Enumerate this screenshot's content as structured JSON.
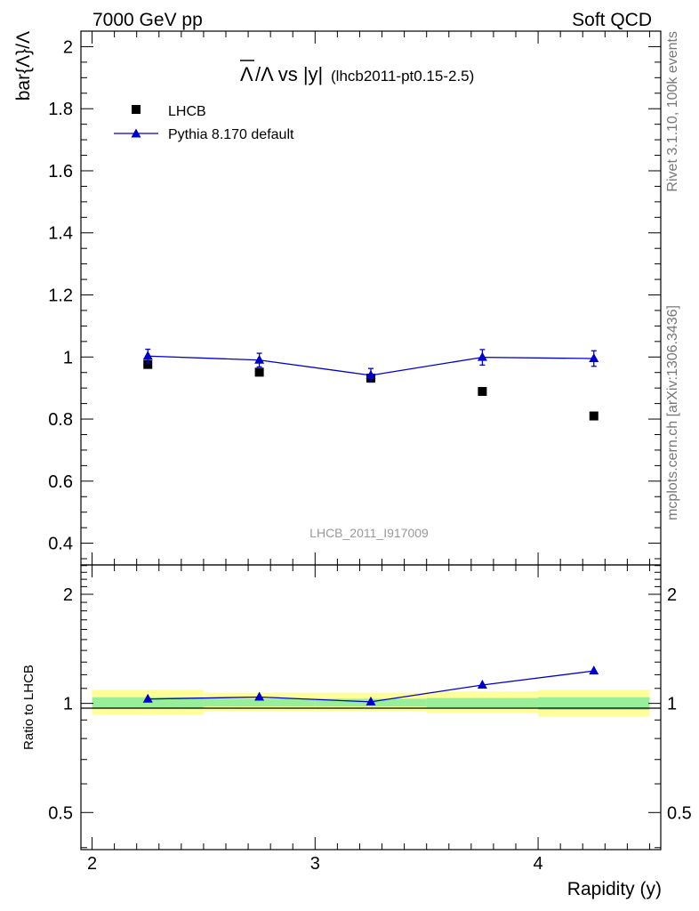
{
  "header": {
    "left": "7000 GeV pp",
    "right": "Soft QCD"
  },
  "side_text": {
    "rivet": "Rivet 3.1.10,  100k events",
    "mcplots": "mcplots.cern.ch [arXiv:1306.3436]"
  },
  "watermark": "LHCB_2011_I917009",
  "colors": {
    "mc": "#0000cc",
    "band_outer": "#ffff99",
    "band_inner": "#99ee99",
    "data": "#000000"
  },
  "chart_data": [
    {
      "type": "scatter",
      "panel": "main",
      "title": "Λ̄/Λ vs |y|",
      "title_parts": {
        "lambdabar": "Λ",
        "rest": "/Λ vs |y|",
        "tag": "(lhcb2011-pt0.15-2.5)"
      },
      "ylabel": "bar{Λ}/Λ",
      "xlim": [
        1.95,
        4.55
      ],
      "ylim": [
        0.33,
        2.05
      ],
      "yticks": [
        0.4,
        0.6,
        0.8,
        1,
        1.2,
        1.4,
        1.6,
        1.8,
        2
      ],
      "ytick_labels": [
        "0.4",
        "0.6",
        "0.8",
        "1",
        "1.2",
        "1.4",
        "1.6",
        "1.8",
        "2"
      ],
      "legend": "top-left",
      "series": [
        {
          "name": "LHCB",
          "marker": "square",
          "x": [
            2.25,
            2.75,
            3.25,
            3.75,
            4.25
          ],
          "xerr": [
            0.25,
            0.25,
            0.25,
            0.25,
            0.25
          ],
          "y": [
            0.976,
            0.951,
            0.932,
            0.889,
            0.81
          ]
        },
        {
          "name": "Pythia 8.170 default",
          "marker": "triangle",
          "line": true,
          "x": [
            2.25,
            2.75,
            3.25,
            3.75,
            4.25
          ],
          "y": [
            1.003,
            0.99,
            0.941,
            0.999,
            0.995
          ],
          "yerr": [
            0.022,
            0.022,
            0.022,
            0.025,
            0.025
          ]
        }
      ]
    },
    {
      "type": "line",
      "panel": "ratio",
      "ylabel": "Ratio to LHCB",
      "xlabel": "Rapidity (y)",
      "xlim": [
        1.95,
        4.55
      ],
      "xticks": [
        2,
        3,
        4
      ],
      "xtick_labels": [
        "2",
        "3",
        "4"
      ],
      "ylim": [
        0.395,
        2.41
      ],
      "log_y": true,
      "yticks": [
        0.5,
        1,
        2
      ],
      "ytick_labels": [
        "0.5",
        "1",
        "2"
      ],
      "bands": {
        "x_edges": [
          2.0,
          2.5,
          3.0,
          3.5,
          4.0,
          4.5
        ],
        "outer": [
          [
            0.93,
            1.09
          ],
          [
            0.95,
            1.07
          ],
          [
            0.95,
            1.07
          ],
          [
            0.94,
            1.08
          ],
          [
            0.92,
            1.09
          ]
        ],
        "inner": [
          [
            0.97,
            1.04
          ],
          [
            0.98,
            1.03
          ],
          [
            0.98,
            1.03
          ],
          [
            0.975,
            1.035
          ],
          [
            0.96,
            1.04
          ]
        ]
      },
      "series": [
        {
          "name": "Pythia 8.170 default",
          "x": [
            2.25,
            2.75,
            3.25,
            3.75,
            4.25
          ],
          "y": [
            1.028,
            1.041,
            1.01,
            1.124,
            1.229
          ],
          "yerr": [
            0.012,
            0.012,
            0.012,
            0.012,
            0.022
          ]
        }
      ]
    }
  ]
}
